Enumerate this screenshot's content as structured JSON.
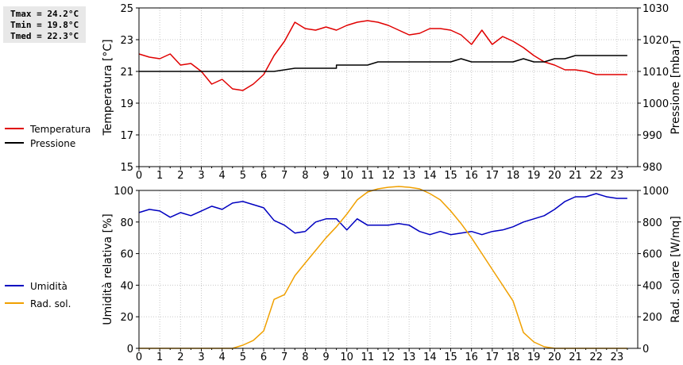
{
  "stats": {
    "tmax": "Tmax = 24.2°C",
    "tmin": "Tmin = 19.8°C",
    "tmed": "Tmed = 22.3°C"
  },
  "chart_data": [
    {
      "type": "line",
      "title": "",
      "ylabel": "Temperatura [°C]",
      "y2label": "Pressione [mbar]",
      "xlim": [
        0,
        24
      ],
      "xticks": [
        "0",
        "1",
        "2",
        "3",
        "4",
        "5",
        "6",
        "7",
        "8",
        "9",
        "10",
        "11",
        "12",
        "13",
        "14",
        "15",
        "16",
        "17",
        "18",
        "19",
        "20",
        "21",
        "22",
        "23"
      ],
      "ylim": [
        15,
        25
      ],
      "yticks": [
        15,
        17,
        19,
        21,
        23,
        25
      ],
      "y2lim": [
        980,
        1030
      ],
      "y2ticks": [
        980,
        990,
        1000,
        1010,
        1020,
        1030
      ],
      "grid": true,
      "legend_position": "left",
      "series": [
        {
          "name": "Temperatura",
          "color": "#e00000",
          "axis": "left",
          "points": [
            [
              0,
              22.1
            ],
            [
              0.5,
              21.9
            ],
            [
              1,
              21.8
            ],
            [
              1.5,
              22.1
            ],
            [
              2,
              21.4
            ],
            [
              2.5,
              21.5
            ],
            [
              3,
              21.0
            ],
            [
              3.5,
              20.2
            ],
            [
              4,
              20.5
            ],
            [
              4.5,
              19.9
            ],
            [
              5,
              19.8
            ],
            [
              5.5,
              20.2
            ],
            [
              6,
              20.8
            ],
            [
              6.5,
              22.0
            ],
            [
              7,
              22.9
            ],
            [
              7.5,
              24.1
            ],
            [
              8,
              23.7
            ],
            [
              8.5,
              23.6
            ],
            [
              9,
              23.8
            ],
            [
              9.5,
              23.6
            ],
            [
              10,
              23.9
            ],
            [
              10.5,
              24.1
            ],
            [
              11,
              24.2
            ],
            [
              11.5,
              24.1
            ],
            [
              12,
              23.9
            ],
            [
              12.5,
              23.6
            ],
            [
              13,
              23.3
            ],
            [
              13.5,
              23.4
            ],
            [
              14,
              23.7
            ],
            [
              14.5,
              23.7
            ],
            [
              15,
              23.6
            ],
            [
              15.5,
              23.3
            ],
            [
              16,
              22.7
            ],
            [
              16.5,
              23.6
            ],
            [
              17,
              22.7
            ],
            [
              17.5,
              23.2
            ],
            [
              18,
              22.9
            ],
            [
              18.5,
              22.5
            ],
            [
              19,
              22.0
            ],
            [
              19.5,
              21.6
            ],
            [
              20,
              21.4
            ],
            [
              20.5,
              21.1
            ],
            [
              21,
              21.1
            ],
            [
              21.5,
              21.0
            ],
            [
              22,
              20.8
            ],
            [
              22.5,
              20.8
            ],
            [
              23,
              20.8
            ],
            [
              23.5,
              20.8
            ]
          ]
        },
        {
          "name": "Pressione",
          "color": "#000000",
          "axis": "right",
          "points": [
            [
              0,
              1010
            ],
            [
              6.5,
              1010
            ],
            [
              7.5,
              1011
            ],
            [
              9.5,
              1011
            ],
            [
              9.5,
              1012
            ],
            [
              11,
              1012
            ],
            [
              11.5,
              1013
            ],
            [
              15,
              1013
            ],
            [
              15.5,
              1014
            ],
            [
              16,
              1013
            ],
            [
              18,
              1013
            ],
            [
              18.5,
              1014
            ],
            [
              19,
              1013
            ],
            [
              19.5,
              1013
            ],
            [
              20,
              1014
            ],
            [
              20.5,
              1014
            ],
            [
              21,
              1015
            ],
            [
              23.5,
              1015
            ]
          ]
        }
      ]
    },
    {
      "type": "line",
      "title": "",
      "ylabel": "Umidità relativa [%]",
      "y2label": "Rad. solare [W/mq]",
      "xlim": [
        0,
        24
      ],
      "xticks": [
        "0",
        "1",
        "2",
        "3",
        "4",
        "5",
        "6",
        "7",
        "8",
        "9",
        "10",
        "11",
        "12",
        "13",
        "14",
        "15",
        "16",
        "17",
        "18",
        "19",
        "20",
        "21",
        "22",
        "23"
      ],
      "ylim": [
        0,
        100
      ],
      "yticks": [
        0,
        20,
        40,
        60,
        80,
        100
      ],
      "y2lim": [
        0,
        1000
      ],
      "y2ticks": [
        0,
        200,
        400,
        600,
        800,
        1000
      ],
      "grid": true,
      "legend_position": "left",
      "series": [
        {
          "name": "Umidità",
          "color": "#0000c0",
          "axis": "left",
          "points": [
            [
              0,
              86
            ],
            [
              0.5,
              88
            ],
            [
              1,
              87
            ],
            [
              1.5,
              83
            ],
            [
              2,
              86
            ],
            [
              2.5,
              84
            ],
            [
              3,
              87
            ],
            [
              3.5,
              90
            ],
            [
              4,
              88
            ],
            [
              4.5,
              92
            ],
            [
              5,
              93
            ],
            [
              5.5,
              91
            ],
            [
              6,
              89
            ],
            [
              6.5,
              81
            ],
            [
              7,
              78
            ],
            [
              7.5,
              73
            ],
            [
              8,
              74
            ],
            [
              8.5,
              80
            ],
            [
              9,
              82
            ],
            [
              9.5,
              82
            ],
            [
              10,
              75
            ],
            [
              10.5,
              82
            ],
            [
              11,
              78
            ],
            [
              11.5,
              78
            ],
            [
              12,
              78
            ],
            [
              12.5,
              79
            ],
            [
              13,
              78
            ],
            [
              13.5,
              74
            ],
            [
              14,
              72
            ],
            [
              14.5,
              74
            ],
            [
              15,
              72
            ],
            [
              15.5,
              73
            ],
            [
              16,
              74
            ],
            [
              16.5,
              72
            ],
            [
              17,
              74
            ],
            [
              17.5,
              75
            ],
            [
              18,
              77
            ],
            [
              18.5,
              80
            ],
            [
              19,
              82
            ],
            [
              19.5,
              84
            ],
            [
              20,
              88
            ],
            [
              20.5,
              93
            ],
            [
              21,
              96
            ],
            [
              21.5,
              96
            ],
            [
              22,
              98
            ],
            [
              22.5,
              96
            ],
            [
              23,
              95
            ],
            [
              23.5,
              95
            ]
          ]
        },
        {
          "name": "Rad. sol.",
          "color": "#f0a000",
          "axis": "right",
          "points": [
            [
              0,
              0
            ],
            [
              4.5,
              0
            ],
            [
              5,
              20
            ],
            [
              5.5,
              50
            ],
            [
              6,
              110
            ],
            [
              6.5,
              310
            ],
            [
              7,
              340
            ],
            [
              7.5,
              460
            ],
            [
              8,
              540
            ],
            [
              8.5,
              620
            ],
            [
              9,
              700
            ],
            [
              9.5,
              770
            ],
            [
              10,
              850
            ],
            [
              10.5,
              940
            ],
            [
              11,
              990
            ],
            [
              11.5,
              1010
            ],
            [
              12,
              1020
            ],
            [
              12.5,
              1025
            ],
            [
              13,
              1020
            ],
            [
              13.5,
              1010
            ],
            [
              14,
              980
            ],
            [
              14.5,
              940
            ],
            [
              15,
              870
            ],
            [
              15.5,
              790
            ],
            [
              16,
              700
            ],
            [
              16.5,
              600
            ],
            [
              17,
              500
            ],
            [
              17.5,
              400
            ],
            [
              18,
              300
            ],
            [
              18.5,
              100
            ],
            [
              19,
              40
            ],
            [
              19.5,
              10
            ],
            [
              20,
              0
            ],
            [
              23.5,
              0
            ]
          ]
        }
      ]
    }
  ]
}
